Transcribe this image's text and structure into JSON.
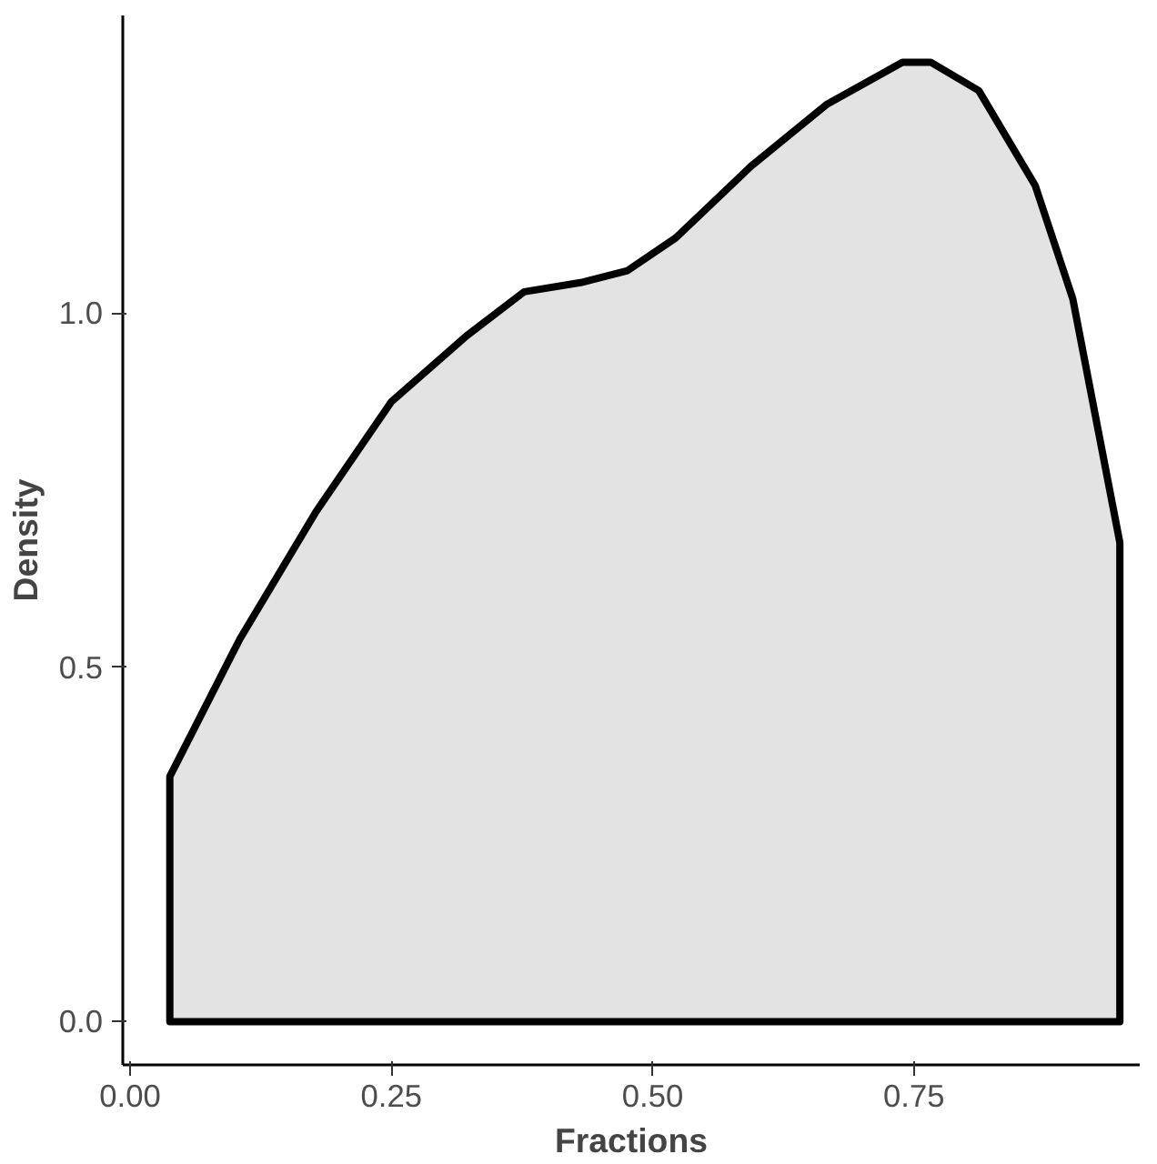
{
  "chart_data": {
    "type": "area",
    "xlabel": "Fractions",
    "ylabel": "Density",
    "x": [
      0.038,
      0.105,
      0.178,
      0.25,
      0.322,
      0.377,
      0.431,
      0.476,
      0.522,
      0.594,
      0.667,
      0.739,
      0.766,
      0.812,
      0.866,
      0.902,
      0.947
    ],
    "series": [
      {
        "color": "#e3e3e3",
        "values": [
          0.346,
          0.54,
          0.72,
          0.875,
          0.968,
          1.03,
          1.043,
          1.06,
          1.106,
          1.207,
          1.295,
          1.354,
          1.354,
          1.314,
          1.18,
          1.02,
          0.676
        ]
      }
    ],
    "xlim": [
      -0.007,
      0.966
    ],
    "ylim": [
      -0.061,
      1.42
    ],
    "xticks": [
      {
        "value": 0,
        "label": "0.00"
      },
      {
        "value": 0.25,
        "label": "0.25"
      },
      {
        "value": 0.5,
        "label": "0.50"
      },
      {
        "value": 0.75,
        "label": "0.75"
      }
    ],
    "yticks": [
      {
        "value": 0,
        "label": "0.0"
      },
      {
        "value": 0.5,
        "label": "0.5"
      },
      {
        "value": 1,
        "label": "1.0"
      }
    ],
    "grid": false
  }
}
